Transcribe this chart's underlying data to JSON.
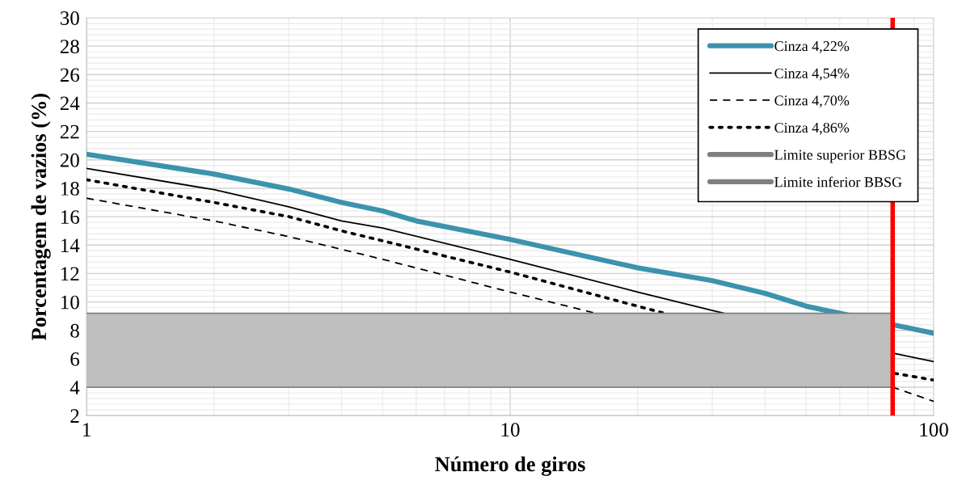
{
  "chart_data": {
    "type": "line",
    "xlabel": "Número de giros",
    "ylabel": "Porcentagem de vazios (%)",
    "log": "x",
    "xlim": [
      1,
      100
    ],
    "xticks": [
      1,
      10,
      100
    ],
    "ylim": [
      2,
      30
    ],
    "yticks": [
      2,
      4,
      6,
      8,
      10,
      12,
      14,
      16,
      18,
      20,
      22,
      24,
      26,
      28,
      30
    ],
    "grid": true,
    "legend": "top right",
    "marker": "none",
    "series": [
      {
        "name": "Cinza 4,22%",
        "color": "#3c93ad",
        "line_style": "solid",
        "x": [
          1,
          2,
          3,
          4,
          5,
          6,
          10,
          20,
          30,
          40,
          50,
          60,
          80,
          100
        ],
        "values": [
          20.4,
          19.0,
          17.95,
          17.0,
          16.4,
          15.7,
          14.4,
          12.4,
          11.5,
          10.6,
          9.7,
          9.2,
          8.4,
          7.8
        ]
      },
      {
        "name": "Cinza 4,54%",
        "color": "#000000",
        "line_style": "solid",
        "x": [
          1,
          2,
          3,
          4,
          5,
          10,
          20,
          30,
          80,
          100
        ],
        "values": [
          19.4,
          17.9,
          16.7,
          15.7,
          15.2,
          13.0,
          10.7,
          9.4,
          6.4,
          5.8
        ]
      },
      {
        "name": "Cinza 4,70%",
        "color": "#000000",
        "line_style": "dashed",
        "x": [
          1,
          2,
          3,
          4,
          5,
          10,
          80,
          100
        ],
        "values": [
          17.3,
          15.7,
          14.6,
          13.7,
          13.0,
          10.7,
          4.0,
          3.0
        ]
      },
      {
        "name": "Cinza 4,86%",
        "color": "#000000",
        "line_style": "dotted",
        "x": [
          1,
          2,
          3,
          4,
          5,
          10,
          20,
          80,
          100
        ],
        "values": [
          18.6,
          17.0,
          16.0,
          15.0,
          14.3,
          12.1,
          9.7,
          5.0,
          4.5
        ]
      },
      {
        "name": "Limite superior BBSG",
        "color": "#808080",
        "line_style": "solid",
        "x": [
          1,
          80
        ],
        "values": [
          9.2,
          9.2
        ]
      },
      {
        "name": "Limite inferior BBSG",
        "color": "#808080",
        "line_style": "solid",
        "x": [
          1,
          80
        ],
        "values": [
          4.0,
          4.0
        ]
      }
    ],
    "bands": [
      {
        "axis": "y",
        "from": 4.0,
        "to": 9.2,
        "color": "#bfbfbf"
      }
    ],
    "ref_lines": [
      {
        "axis": "x",
        "value": 80,
        "color": "#ff0000",
        "line_style": "solid"
      }
    ]
  }
}
